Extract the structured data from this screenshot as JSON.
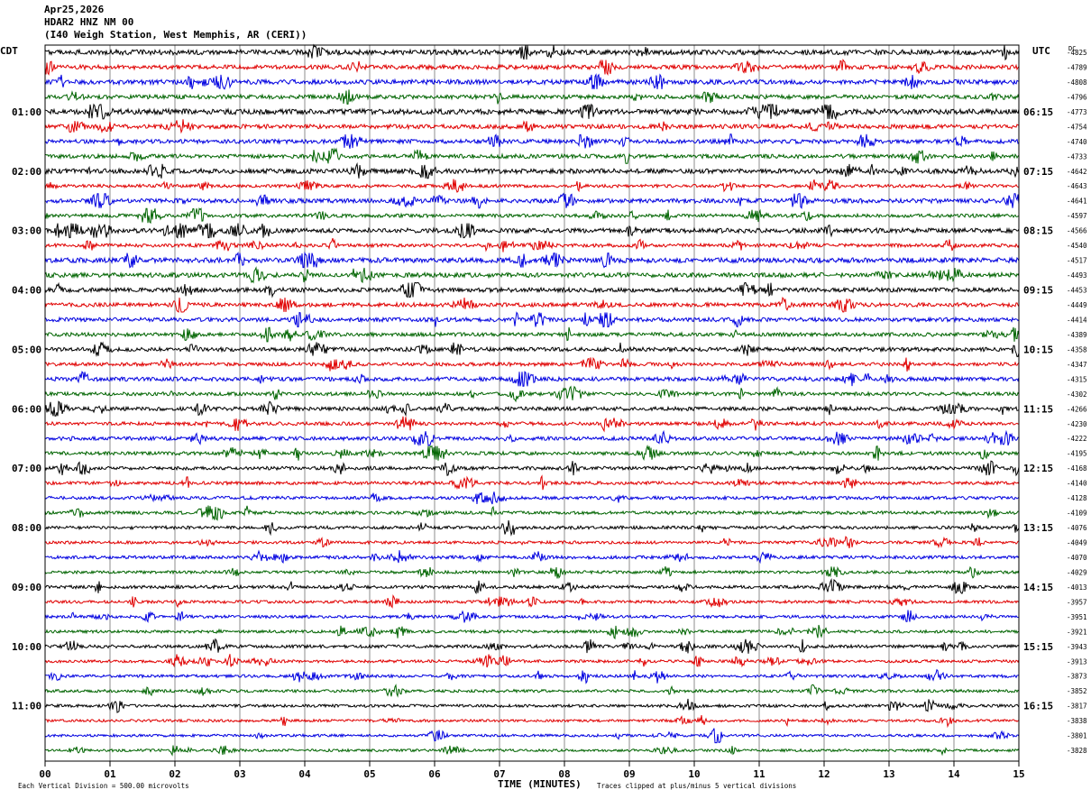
{
  "header": {
    "date": "Apr25,2026",
    "station": "HDAR2 HNZ NM 00",
    "location": "(I40 Weigh Station, West Memphis, AR (CERI))"
  },
  "labels": {
    "left_tz": "CDT",
    "right_tz": "UTC",
    "dc_header": "DC",
    "x_axis_title": "TIME (MINUTES)",
    "footer_scale": "Each Vertical Division =  500.00 microvolts",
    "footer_clip": "Traces clipped at plus/minus 5 vertical divisions"
  },
  "colors": {
    "trace_cycle": [
      "#000000",
      "#e00000",
      "#0000e0",
      "#006400"
    ],
    "grid": "#8c8c8c",
    "background": "#ffffff"
  },
  "chart_data": {
    "type": "line",
    "subtype": "helicorder",
    "x_ticks": [
      "00",
      "01",
      "02",
      "03",
      "04",
      "05",
      "06",
      "07",
      "08",
      "09",
      "10",
      "11",
      "12",
      "13",
      "14",
      "15"
    ],
    "xlim": [
      0,
      15
    ],
    "left_hour_labels": [
      "01:00",
      "02:00",
      "03:00",
      "04:00",
      "05:00",
      "06:00",
      "07:00",
      "08:00",
      "09:00",
      "10:00",
      "11:00"
    ],
    "right_hour_labels": [
      "06:15",
      "07:15",
      "08:15",
      "09:15",
      "10:15",
      "11:15",
      "12:15",
      "13:15",
      "14:15",
      "15:15",
      "16:15"
    ],
    "hour_label_rows": [
      4,
      8,
      12,
      16,
      20,
      24,
      28,
      32,
      36,
      40,
      44
    ],
    "dc_offsets": [
      "-4825",
      "-4789",
      "-4808",
      "-4796",
      "-4773",
      "-4754",
      "-4740",
      "-4733",
      "-4642",
      "-4643",
      "-4641",
      "-4597",
      "-4566",
      "-4540",
      "-4517",
      "-4493",
      "-4453",
      "-4449",
      "-4414",
      "-4389",
      "-4358",
      "-4347",
      "-4315",
      "-4302",
      "-4266",
      "-4230",
      "-4222",
      "-4195",
      "-4168",
      "-4140",
      "-4128",
      "-4109",
      "-4076",
      "-4049",
      "-4070",
      "-4029",
      "-4013",
      "-3957",
      "-3951",
      "-3921",
      "-3943",
      "-3913",
      "-3873",
      "-3852",
      "-3817",
      "-3838",
      "-3801",
      "-3828"
    ],
    "row_noise_amplitude": [
      0.85,
      0.75,
      0.8,
      0.7,
      0.9,
      0.75,
      0.7,
      0.7,
      0.8,
      0.55,
      0.75,
      0.6,
      0.8,
      0.6,
      0.85,
      0.8,
      0.75,
      0.7,
      0.7,
      0.65,
      0.7,
      0.6,
      0.7,
      0.6,
      0.65,
      0.6,
      0.65,
      0.6,
      0.6,
      0.55,
      0.55,
      0.55,
      0.55,
      0.5,
      0.55,
      0.5,
      0.55,
      0.5,
      0.5,
      0.5,
      0.55,
      0.5,
      0.5,
      0.5,
      0.5,
      0.45,
      0.45,
      0.45
    ],
    "grid": true
  }
}
